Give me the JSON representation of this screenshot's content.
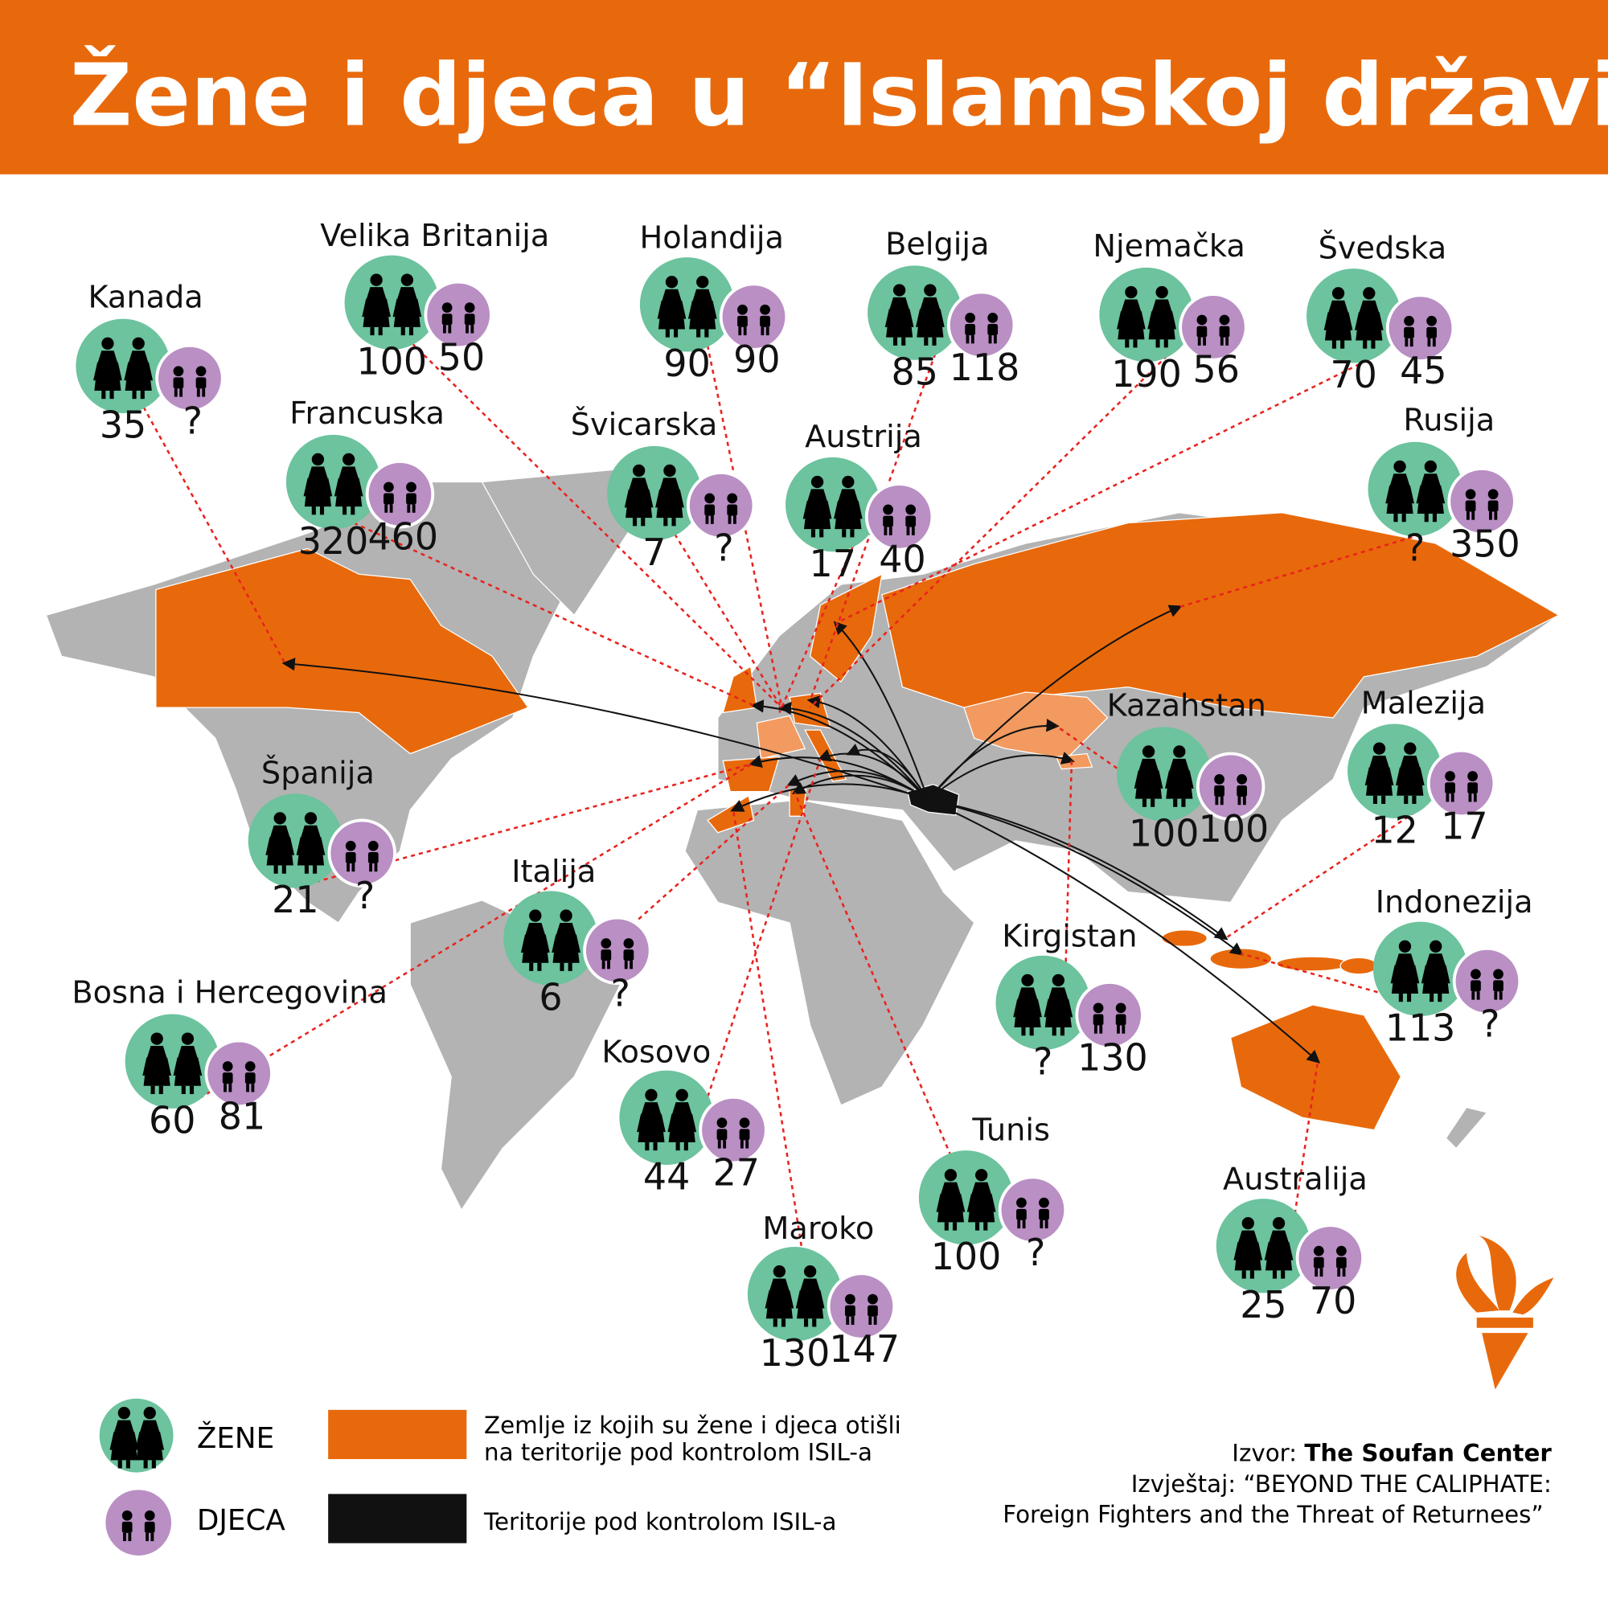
{
  "title": "Žene i djeca u “Islamskoj državi”",
  "colors": {
    "brand_orange": "#e8690b",
    "women_green": "#6cc39e",
    "children_purple": "#b98fc4",
    "land_gray": "#b3b3b3",
    "kazakhstan_light_orange": "#f29a5f",
    "isil_black": "#111111",
    "leader_red": "#e8231e"
  },
  "countries": [
    {
      "name": "Kanada",
      "women": "35",
      "children": "?"
    },
    {
      "name": "Velika Britanija",
      "women": "100",
      "children": "50"
    },
    {
      "name": "Holandija",
      "women": "90",
      "children": "90"
    },
    {
      "name": "Belgija",
      "women": "85",
      "children": "118"
    },
    {
      "name": "Njemačka",
      "women": "190",
      "children": "56"
    },
    {
      "name": "Švedska",
      "women": "70",
      "children": "45"
    },
    {
      "name": "Francuska",
      "women": "320",
      "children": "460"
    },
    {
      "name": "Švicarska",
      "women": "7",
      "children": "?"
    },
    {
      "name": "Austrija",
      "women": "17",
      "children": "40"
    },
    {
      "name": "Rusija",
      "women": "?",
      "children": "350"
    },
    {
      "name": "Kazahstan",
      "women": "100",
      "children": "100"
    },
    {
      "name": "Malezija",
      "women": "12",
      "children": "17"
    },
    {
      "name": "Španija",
      "women": "21",
      "children": "?"
    },
    {
      "name": "Italija",
      "women": "6",
      "children": "?"
    },
    {
      "name": "Indonezija",
      "women": "113",
      "children": "?"
    },
    {
      "name": "Kirgistan",
      "women": "?",
      "children": "130"
    },
    {
      "name": "Bosna i Hercegovina",
      "women": "60",
      "children": "81"
    },
    {
      "name": "Kosovo",
      "women": "44",
      "children": "27"
    },
    {
      "name": "Tunis",
      "women": "100",
      "children": "?"
    },
    {
      "name": "Australija",
      "women": "25",
      "children": "70"
    },
    {
      "name": "Maroko",
      "women": "130",
      "children": "147"
    }
  ],
  "legend": {
    "women": "ŽENE",
    "children": "DJECA",
    "origin_line1": "Zemlje iz kojih su žene i djeca otišli",
    "origin_line2": "na teritorije pod kontrolom ISIL-a",
    "isil": "Teritorije pod kontrolom ISIL-a"
  },
  "source": {
    "label": "Izvor: ",
    "name": "The Soufan Center",
    "report_line1": "Izvještaj: “BEYOND THE CALIPHATE:",
    "report_line2": "Foreign Fighters and the Threat of Returnees”"
  },
  "icons": {
    "women": "women-silhouette-icon",
    "children": "children-silhouette-icon",
    "logo": "torch-logo-icon"
  }
}
